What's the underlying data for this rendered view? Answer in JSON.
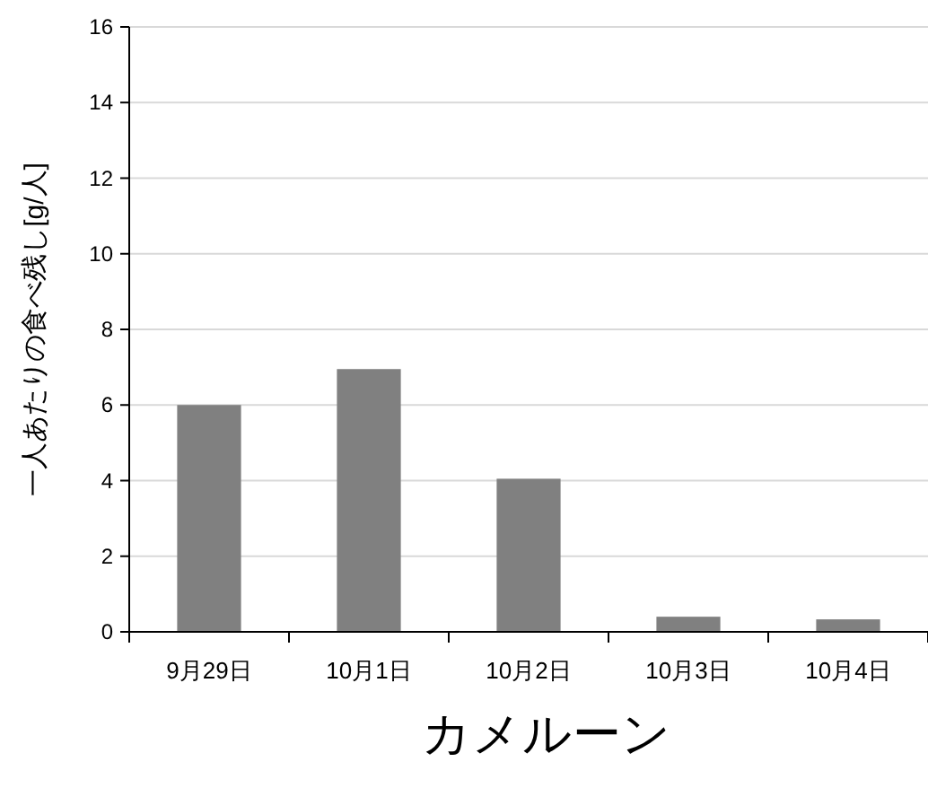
{
  "chart_data": {
    "type": "bar",
    "title": "カメルーン",
    "ylabel": "一人あたりの食べ残し[g/人]",
    "categories": [
      "9月29日",
      "10月1日",
      "10月2日",
      "10月3日",
      "10月4日"
    ],
    "values": [
      6.0,
      6.95,
      4.05,
      0.4,
      0.33
    ],
    "color": "#808080",
    "ylim": [
      0,
      16
    ],
    "yticks": [
      0,
      2,
      4,
      6,
      8,
      10,
      12,
      14,
      16
    ],
    "grid": "y"
  }
}
